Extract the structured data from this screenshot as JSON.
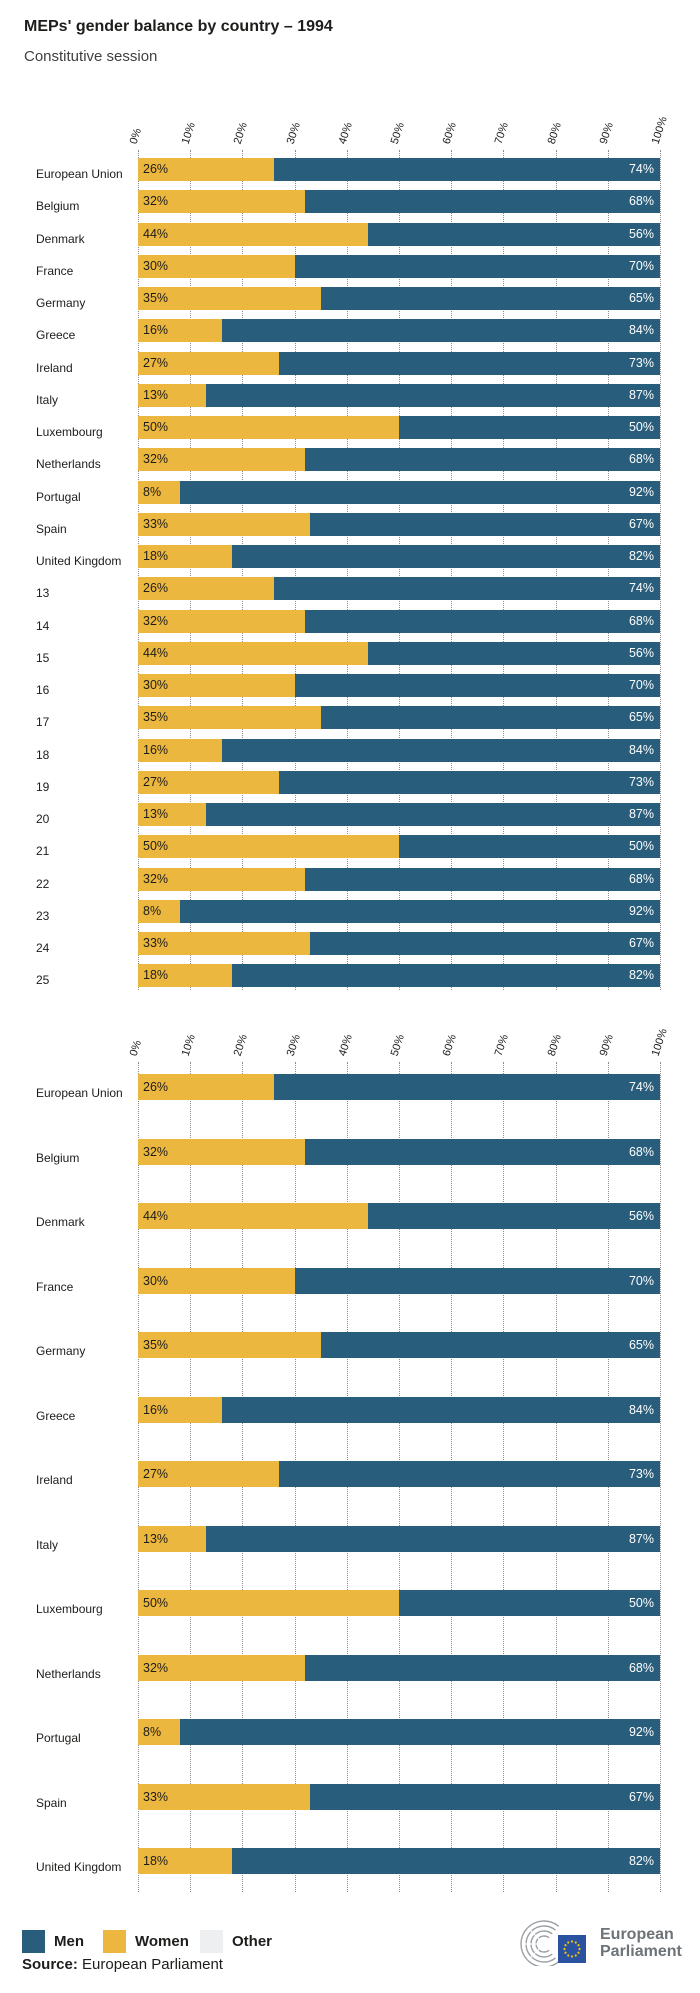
{
  "title": "MEPs' gender balance by country – 1994",
  "subtitle": "Constitutive session",
  "colors": {
    "men": "#285d7b",
    "women": "#ecb73f",
    "other": "#edeff1",
    "grid": "#8c8c8c",
    "bar_label_dark": "#1d1d1b",
    "bar_label_light": "#ffffff"
  },
  "legend": {
    "items": [
      {
        "label": "Men",
        "color_key": "men"
      },
      {
        "label": "Women",
        "color_key": "women"
      },
      {
        "label": "Other",
        "color_key": "other"
      }
    ]
  },
  "source": {
    "prefix": "Source:",
    "text": "European Parliament"
  },
  "logo": {
    "line1": "European",
    "line2": "Parliament"
  },
  "chart_data": [
    {
      "type": "bar",
      "orientation": "horizontal",
      "stacked": true,
      "unit": "%",
      "xlim": [
        0,
        100
      ],
      "grid": "dotted-vertical",
      "data_labels": true,
      "legend_position": "bottom",
      "ticks": [
        "0%",
        "10%",
        "20%",
        "30%",
        "40%",
        "50%",
        "60%",
        "70%",
        "80%",
        "90%",
        "100%"
      ],
      "categories": [
        "European Union",
        "Belgium",
        "Denmark",
        "France",
        "Germany",
        "Greece",
        "Ireland",
        "Italy",
        "Luxembourg",
        "Netherlands",
        "Portugal",
        "Spain",
        "United Kingdom",
        "13",
        "14",
        "15",
        "16",
        "17",
        "18",
        "19",
        "20",
        "21",
        "22",
        "23",
        "24",
        "25"
      ],
      "series": [
        {
          "name": "Women",
          "values": [
            26,
            32,
            44,
            30,
            35,
            16,
            27,
            13,
            50,
            32,
            8,
            33,
            18,
            26,
            32,
            44,
            30,
            35,
            16,
            27,
            13,
            50,
            32,
            8,
            33,
            18
          ]
        },
        {
          "name": "Men",
          "values": [
            74,
            68,
            56,
            70,
            65,
            84,
            73,
            87,
            50,
            68,
            92,
            67,
            82,
            74,
            68,
            56,
            70,
            65,
            84,
            73,
            87,
            50,
            68,
            92,
            67,
            82
          ]
        }
      ]
    },
    {
      "type": "bar",
      "orientation": "horizontal",
      "stacked": true,
      "unit": "%",
      "xlim": [
        0,
        100
      ],
      "grid": "dotted-vertical",
      "data_labels": true,
      "legend_position": "bottom",
      "ticks": [
        "0%",
        "10%",
        "20%",
        "30%",
        "40%",
        "50%",
        "60%",
        "70%",
        "80%",
        "90%",
        "100%"
      ],
      "categories": [
        "European Union",
        "Belgium",
        "Denmark",
        "France",
        "Germany",
        "Greece",
        "Ireland",
        "Italy",
        "Luxembourg",
        "Netherlands",
        "Portugal",
        "Spain",
        "United Kingdom"
      ],
      "series": [
        {
          "name": "Women",
          "values": [
            26,
            32,
            44,
            30,
            35,
            16,
            27,
            13,
            50,
            32,
            8,
            33,
            18
          ]
        },
        {
          "name": "Men",
          "values": [
            74,
            68,
            56,
            70,
            65,
            84,
            73,
            87,
            50,
            68,
            92,
            67,
            82
          ]
        }
      ]
    }
  ]
}
